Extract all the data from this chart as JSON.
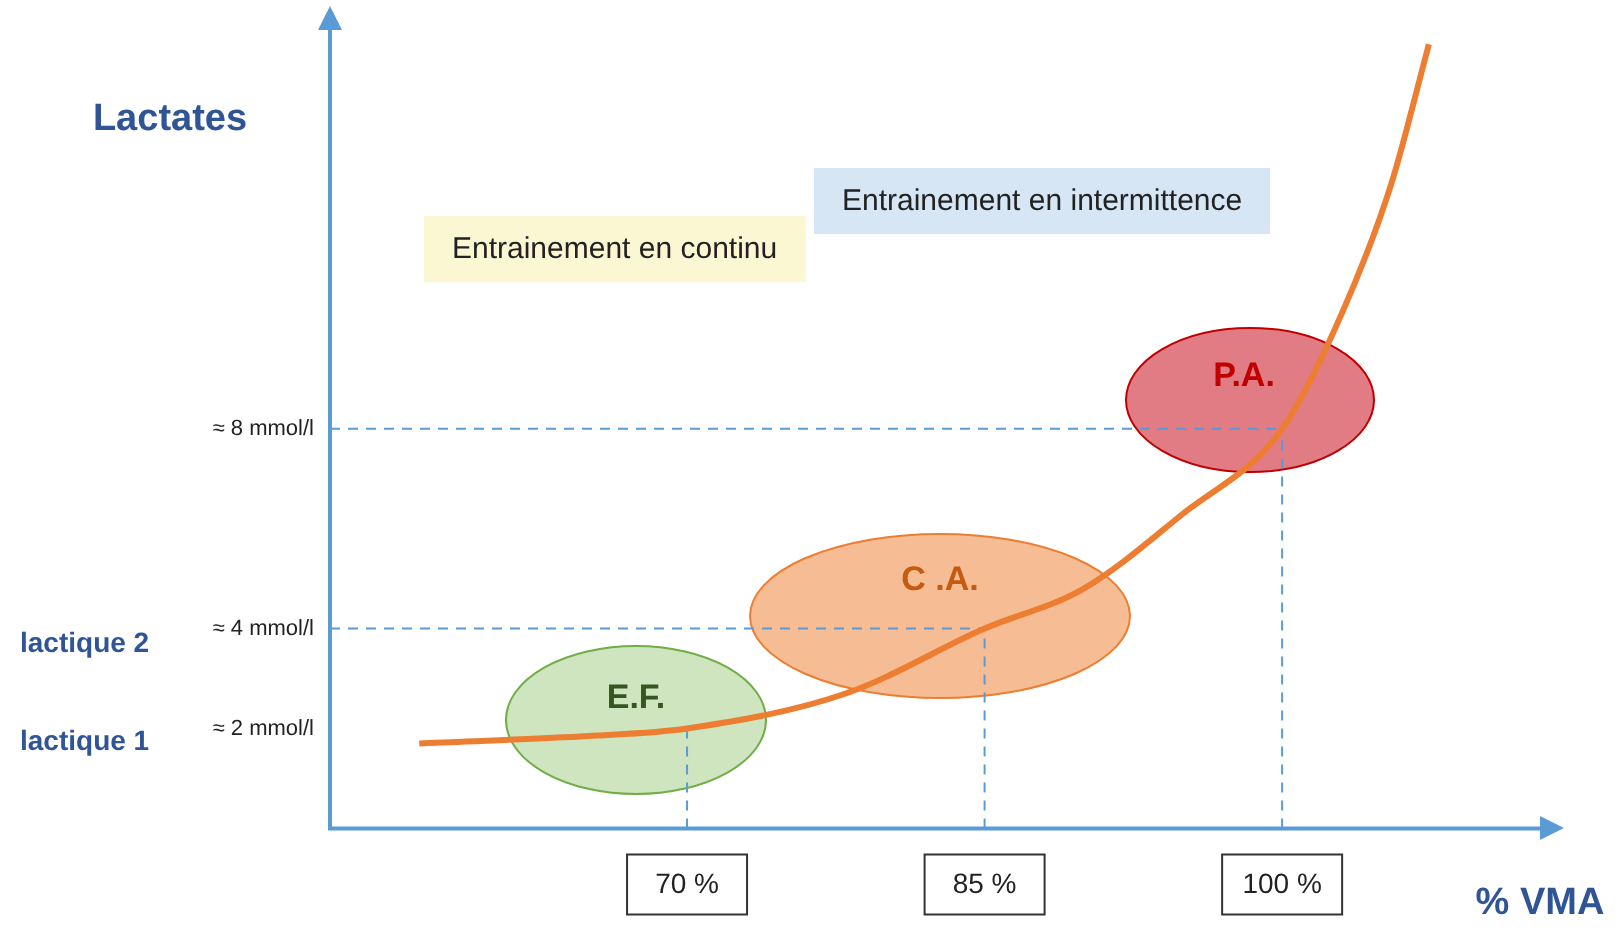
{
  "chart_data": {
    "type": "line",
    "xlabel": "% VMA",
    "ylabel": "Lactates",
    "series": [
      {
        "color": "#ed7d31",
        "x": [
          56.5,
          65,
          70,
          78,
          85,
          90,
          95,
          100,
          103,
          105.5,
          107.4
        ],
        "values": [
          1.7,
          1.85,
          2,
          2.7,
          4,
          4.8,
          6.3,
          8,
          10.3,
          12.9,
          15.7
        ]
      }
    ],
    "xlim": [
      52,
      113
    ],
    "ylim": [
      0,
      16
    ],
    "xticks": [
      {
        "value": 70,
        "label": "70 %"
      },
      {
        "value": 85,
        "label": "85 %"
      },
      {
        "value": 100,
        "label": "100 %"
      }
    ],
    "yticks": [
      {
        "value": 2,
        "label": "≈ 2 mmol/l"
      },
      {
        "value": 4,
        "label": "≈ 4 mmol/l"
      },
      {
        "value": 8,
        "label": "≈ 8 mmol/l"
      }
    ],
    "ref_lines": [
      {
        "axis": "x",
        "value": 70,
        "color": "#5b9bd5",
        "line_style": "dashed"
      },
      {
        "axis": "x",
        "value": 85,
        "color": "#5b9bd5",
        "line_style": "dashed"
      },
      {
        "axis": "x",
        "value": 100,
        "color": "#5b9bd5",
        "line_style": "dashed"
      },
      {
        "axis": "y",
        "value": 4,
        "color": "#5b9bd5",
        "line_style": "dashed"
      },
      {
        "axis": "y",
        "value": 8,
        "color": "#5b9bd5",
        "line_style": "dashed"
      }
    ],
    "annotations": [
      "E.F.",
      "C .A.",
      "P.A.",
      "lactique  1",
      "lactique  2",
      "Entrainement en continu",
      "Entrainement en intermittence"
    ],
    "grid": false,
    "legend": false,
    "marker": "none",
    "line_style": "solid"
  }
}
